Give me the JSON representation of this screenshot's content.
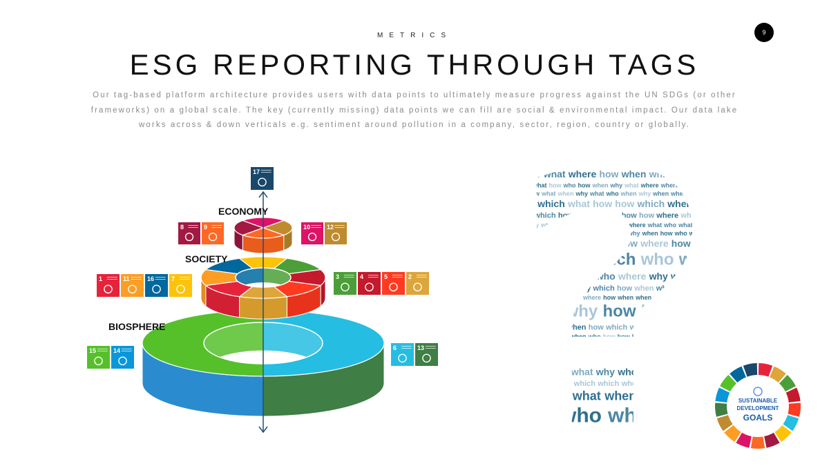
{
  "slide": {
    "kicker": "METRICS",
    "title": "ESG REPORTING THROUGH TAGS",
    "paragraph": "Our tag-based platform architecture provides users with data points to ultimately measure progress against the UN SDGs (or other frameworks) on a global scale. The key (currently missing) data points we can fill are social & environmental impact. Our data lake works across & down verticals e.g. sentiment around pollution in a company, sector, region, country or globally.",
    "page_number": "9"
  },
  "diagram": {
    "labels": {
      "economy": "ECONOMY",
      "society": "SOCIETY",
      "biosphere": "BIOSPHERE"
    },
    "top_tile": {
      "number": "17",
      "color": "#19486a"
    },
    "tile_groups": {
      "economy_left": [
        {
          "number": "8",
          "color": "#a21942"
        },
        {
          "number": "9",
          "color": "#fd6925"
        }
      ],
      "economy_right": [
        {
          "number": "10",
          "color": "#dd1367"
        },
        {
          "number": "12",
          "color": "#bf8b2e"
        }
      ],
      "society_left": [
        {
          "number": "1",
          "color": "#e5243b"
        },
        {
          "number": "11",
          "color": "#fd9d24"
        },
        {
          "number": "16",
          "color": "#00689d"
        },
        {
          "number": "7",
          "color": "#fcc30b"
        }
      ],
      "society_right": [
        {
          "number": "3",
          "color": "#4c9f38"
        },
        {
          "number": "4",
          "color": "#c5192d"
        },
        {
          "number": "5",
          "color": "#ff3a21"
        },
        {
          "number": "2",
          "color": "#dda63a"
        }
      ],
      "biosphere_left": [
        {
          "number": "15",
          "color": "#56c02b"
        },
        {
          "number": "14",
          "color": "#0a97d9"
        }
      ],
      "biosphere_right": [
        {
          "number": "6",
          "color": "#26bde2"
        },
        {
          "number": "13",
          "color": "#3f7e44"
        }
      ]
    },
    "axis_color": "#1f4e79",
    "rings": {
      "economy": [
        {
          "top": "#bf8b2e",
          "side": "#a87a25"
        },
        {
          "top": "#fd6925",
          "side": "#e85c1c"
        },
        {
          "top": "#a21942",
          "side": "#8c1438"
        },
        {
          "top": "#dd1367",
          "side": "#c10f59"
        }
      ],
      "society": [
        {
          "top": "#c5192d",
          "side": "#b01528"
        },
        {
          "top": "#ff3a21",
          "side": "#e8331c"
        },
        {
          "top": "#dda63a",
          "side": "#d49a2c"
        },
        {
          "top": "#e5243b",
          "side": "#d11f34"
        },
        {
          "top": "#fd9d24",
          "side": "#e58c1c"
        },
        {
          "top": "#00689d",
          "side": "#005a88"
        },
        {
          "top": "#fcc30b",
          "side": "#e5b009"
        },
        {
          "top": "#4c9f38",
          "side": "#428c30"
        }
      ],
      "biosphere": [
        {
          "top": "#26bde2",
          "side": "#3f7e44"
        },
        {
          "top": "#56c02b",
          "side": "#2a8ccf"
        }
      ]
    }
  },
  "word_cloud": {
    "words": [
      "who",
      "what",
      "when",
      "where",
      "why",
      "which",
      "how"
    ],
    "colors": [
      "#2f6f8f",
      "#4d86a6",
      "#7fa9c2",
      "#a9c6d6"
    ]
  },
  "sdg_logo": {
    "line1": "SUSTAINABLE",
    "line2": "DEVELOPMENT",
    "line3": "GOALS",
    "wheel_colors": [
      "#e5243b",
      "#dda63a",
      "#4c9f38",
      "#c5192d",
      "#ff3a21",
      "#26bde2",
      "#fcc30b",
      "#a21942",
      "#fd6925",
      "#dd1367",
      "#fd9d24",
      "#bf8b2e",
      "#3f7e44",
      "#0a97d9",
      "#56c02b",
      "#00689d",
      "#19486a"
    ]
  }
}
